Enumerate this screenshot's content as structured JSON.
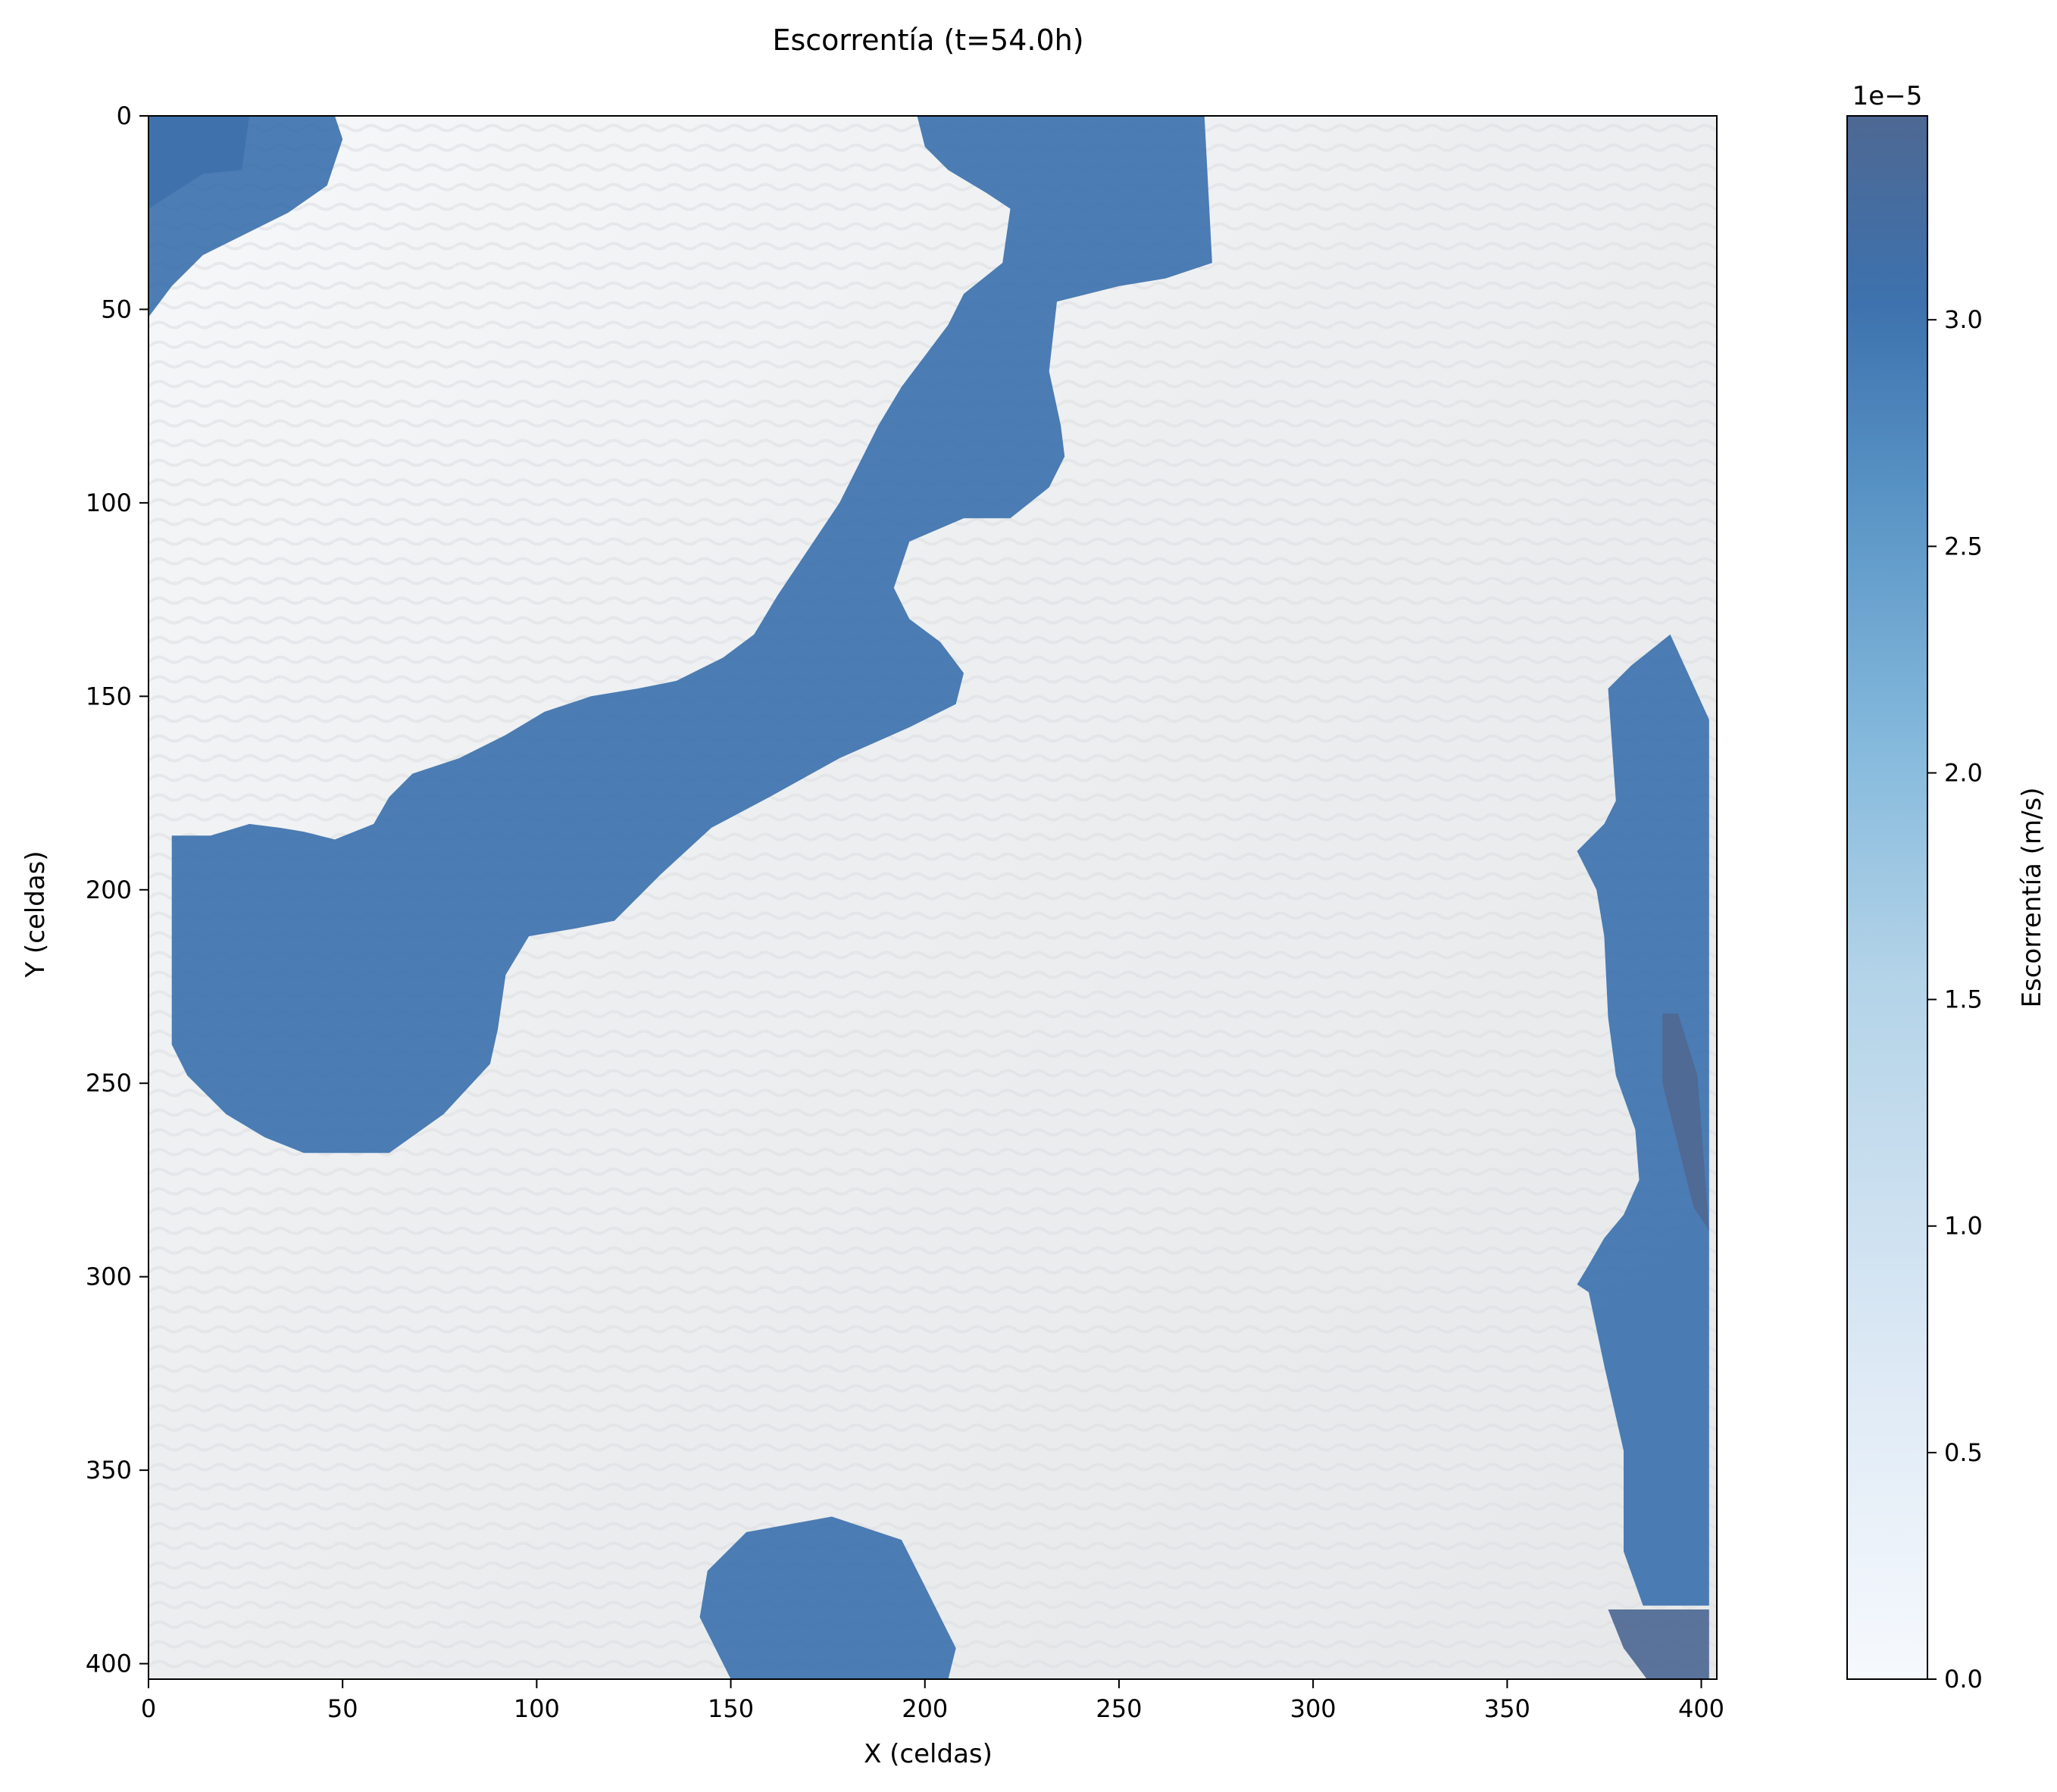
{
  "chart_data": {
    "type": "heatmap",
    "title": "Escorrentía (t=54.0h)",
    "xlabel": "X (celdas)",
    "ylabel": "Y (celdas)",
    "xlim": [
      0,
      404
    ],
    "ylim": [
      404,
      0
    ],
    "x_ticks": [
      0,
      50,
      100,
      150,
      200,
      250,
      300,
      350,
      400
    ],
    "y_ticks": [
      0,
      50,
      100,
      150,
      200,
      250,
      300,
      350,
      400
    ],
    "y_inverted": true,
    "grid": false,
    "colorbar": {
      "label": "Escorrentía (m/s)",
      "scale_label": "1e−5",
      "range": [
        0.0,
        3.45
      ],
      "ticks": [
        "0.0",
        "0.5",
        "1.0",
        "1.5",
        "2.0",
        "2.5",
        "3.0"
      ],
      "colormap": "Blues",
      "colors": [
        "#f6f9fd",
        "#c6dcef",
        "#84b9dc",
        "#5a95c6",
        "#3d72ae",
        "#4e6893"
      ]
    },
    "background": {
      "description_colors": [
        "#f4f6f8",
        "#e2e4e6"
      ]
    },
    "regions": [
      {
        "value": 3.4,
        "polygon": [
          [
            0,
            0
          ],
          [
            26,
            0
          ],
          [
            24,
            14
          ],
          [
            14,
            15
          ],
          [
            0,
            24
          ]
        ]
      },
      {
        "value": 2.8,
        "polygon": [
          [
            0,
            0
          ],
          [
            48,
            0
          ],
          [
            50,
            6
          ],
          [
            46,
            18
          ],
          [
            36,
            25
          ],
          [
            26,
            30
          ],
          [
            14,
            36
          ],
          [
            6,
            44
          ],
          [
            0,
            52
          ]
        ]
      },
      {
        "value": 2.9,
        "polygon": [
          [
            198,
            0
          ],
          [
            272,
            0
          ],
          [
            274,
            38
          ],
          [
            262,
            42
          ],
          [
            250,
            44
          ],
          [
            234,
            48
          ],
          [
            232,
            66
          ],
          [
            235,
            80
          ],
          [
            236,
            88
          ],
          [
            232,
            96
          ],
          [
            222,
            104
          ],
          [
            210,
            104
          ],
          [
            196,
            110
          ],
          [
            192,
            122
          ],
          [
            196,
            130
          ],
          [
            204,
            136
          ],
          [
            210,
            144
          ],
          [
            208,
            152
          ],
          [
            196,
            158
          ],
          [
            178,
            166
          ],
          [
            160,
            176
          ],
          [
            145,
            184
          ],
          [
            132,
            196
          ],
          [
            120,
            208
          ],
          [
            110,
            210
          ],
          [
            98,
            212
          ],
          [
            92,
            222
          ],
          [
            90,
            236
          ],
          [
            88,
            245
          ],
          [
            76,
            258
          ],
          [
            62,
            268
          ],
          [
            52,
            268
          ],
          [
            40,
            268
          ],
          [
            30,
            264
          ],
          [
            20,
            258
          ],
          [
            10,
            248
          ],
          [
            6,
            240
          ],
          [
            6,
            222
          ],
          [
            6,
            186
          ],
          [
            16,
            186
          ],
          [
            26,
            183
          ],
          [
            34,
            184
          ],
          [
            40,
            185
          ],
          [
            48,
            187
          ],
          [
            58,
            183
          ],
          [
            62,
            176
          ],
          [
            68,
            170
          ],
          [
            80,
            166
          ],
          [
            92,
            160
          ],
          [
            102,
            154
          ],
          [
            114,
            150
          ],
          [
            126,
            148
          ],
          [
            136,
            146
          ],
          [
            148,
            140
          ],
          [
            156,
            134
          ],
          [
            162,
            124
          ],
          [
            170,
            112
          ],
          [
            178,
            100
          ],
          [
            184,
            88
          ],
          [
            188,
            80
          ],
          [
            194,
            70
          ],
          [
            200,
            62
          ],
          [
            206,
            54
          ],
          [
            210,
            46
          ],
          [
            220,
            38
          ],
          [
            222,
            24
          ],
          [
            216,
            20
          ],
          [
            206,
            14
          ],
          [
            200,
            8
          ]
        ]
      },
      {
        "value": 2.8,
        "polygon": [
          [
            392,
            134
          ],
          [
            402,
            156
          ],
          [
            402,
            385
          ],
          [
            385,
            385
          ],
          [
            380,
            371
          ],
          [
            380,
            345
          ],
          [
            375,
            323
          ],
          [
            371,
            304
          ],
          [
            368,
            302
          ],
          [
            371,
            297
          ],
          [
            375,
            290
          ],
          [
            380,
            284
          ],
          [
            384,
            275
          ],
          [
            383,
            262
          ],
          [
            378,
            248
          ],
          [
            376,
            233
          ],
          [
            375,
            212
          ],
          [
            373,
            200
          ],
          [
            368,
            190
          ],
          [
            375,
            183
          ],
          [
            378,
            177
          ],
          [
            376,
            148
          ],
          [
            382,
            142
          ]
        ]
      },
      {
        "value": 3.4,
        "polygon": [
          [
            390,
            232
          ],
          [
            394,
            232
          ],
          [
            399,
            248
          ],
          [
            402,
            288
          ],
          [
            398,
            282
          ],
          [
            394,
            266
          ],
          [
            390,
            250
          ]
        ]
      },
      {
        "value": 3.4,
        "polygon": [
          [
            376,
            386
          ],
          [
            402,
            386
          ],
          [
            402,
            404
          ],
          [
            386,
            404
          ],
          [
            380,
            396
          ]
        ]
      },
      {
        "value": 2.8,
        "polygon": [
          [
            144,
            376
          ],
          [
            154,
            366
          ],
          [
            176,
            362
          ],
          [
            194,
            368
          ],
          [
            200,
            380
          ],
          [
            206,
            392
          ],
          [
            208,
            396
          ],
          [
            206,
            404
          ],
          [
            150,
            404
          ],
          [
            146,
            396
          ],
          [
            142,
            388
          ]
        ]
      }
    ]
  }
}
